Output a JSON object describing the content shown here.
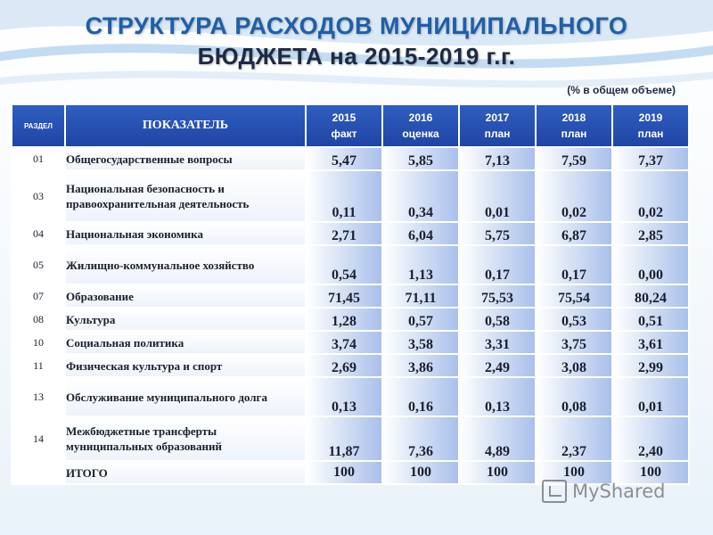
{
  "title_line1": "СТРУКТУРА РАСХОДОВ МУНИЦИПАЛЬНОГО",
  "title_line2": "БЮДЖЕТА на 2015-2019 г.г.",
  "note": "(% в общем объеме)",
  "header": {
    "razdel": "РАЗДЕЛ",
    "pokazatel": "ПОКАЗАТЕЛЬ",
    "years": [
      {
        "year": "2015",
        "kind": "факт"
      },
      {
        "year": "2016",
        "kind": "оценка"
      },
      {
        "year": "2017",
        "kind": "план"
      },
      {
        "year": "2018",
        "kind": "план"
      },
      {
        "year": "2019",
        "kind": "план"
      }
    ]
  },
  "rows": [
    {
      "code": "01",
      "name": "Общегосударственные вопросы",
      "values": [
        "5,47",
        "5,85",
        "7,13",
        "7,59",
        "7,37"
      ]
    },
    {
      "code": "03",
      "name": "Национальная безопасность и правоохранительная деятельность",
      "values": [
        "0,11",
        "0,34",
        "0,01",
        "0,02",
        "0,02"
      ]
    },
    {
      "code": "04",
      "name": "Национальная экономика",
      "values": [
        "2,71",
        "6,04",
        "5,75",
        "6,87",
        "2,85"
      ]
    },
    {
      "code": "05",
      "name": "Жилищно-коммунальное хозяйство",
      "values": [
        "0,54",
        "1,13",
        "0,17",
        "0,17",
        "0,00"
      ]
    },
    {
      "code": "07",
      "name": "Образование",
      "values": [
        "71,45",
        "71,11",
        "75,53",
        "75,54",
        "80,24"
      ]
    },
    {
      "code": "08",
      "name": "Культура",
      "values": [
        "1,28",
        "0,57",
        "0,58",
        "0,53",
        "0,51"
      ]
    },
    {
      "code": "10",
      "name": "Социальная политика",
      "values": [
        "3,74",
        "3,58",
        "3,31",
        "3,75",
        "3,61"
      ]
    },
    {
      "code": "11",
      "name": "Физическая культура и спорт",
      "values": [
        "2,69",
        "3,86",
        "2,49",
        "3,08",
        "2,99"
      ]
    },
    {
      "code": "13",
      "name": "Обслуживание муниципального долга",
      "values": [
        "0,13",
        "0,16",
        "0,13",
        "0,08",
        "0,01"
      ]
    },
    {
      "code": "14",
      "name": "Межбюджетные трансферты муниципальных образований",
      "values": [
        "11,87",
        "7,36",
        "4,89",
        "2,37",
        "2,40"
      ]
    }
  ],
  "total": {
    "name": "ИТОГО",
    "values": [
      "100",
      "100",
      "100",
      "100",
      "100"
    ]
  },
  "watermark": "MyShared",
  "colors": {
    "title": "#1f5fa8",
    "header_bg": "#2a55b8",
    "cell_gradient_end": "#a9c0ec"
  }
}
